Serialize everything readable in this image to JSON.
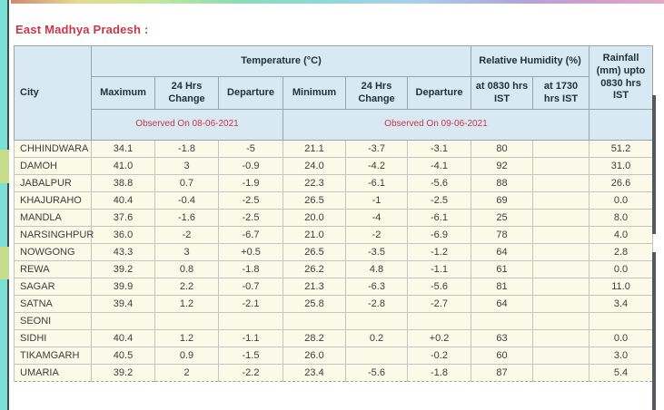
{
  "title": "East Madhya Pradesh :",
  "colors": {
    "accent_red": "#cb3647",
    "header_bg": "#d8e9f3",
    "cell_bg": "#fbfae9",
    "left_strip_teal": "#7de0d6"
  },
  "table": {
    "columns": {
      "city": "City",
      "temperature_group": "Temperature (°C)",
      "humidity_group": "Relative Humidity (%)",
      "rainfall": "Rainfall (mm) upto 0830 hrs IST",
      "sub": [
        "Maximum",
        "24 Hrs Change",
        "Departure",
        "Minimum",
        "24 Hrs Change",
        "Departure",
        "at 0830 hrs IST",
        "at 1730 hrs IST"
      ],
      "observed_max": "Observed On 08-06-2021",
      "observed_min": "Observed On 09-06-2021"
    },
    "rows": [
      {
        "city": "CHHINDWARA",
        "values": [
          "34.1",
          "-1.8",
          "-5",
          "21.1",
          "-3.7",
          "-3.1",
          "80",
          "",
          "51.2"
        ]
      },
      {
        "city": "DAMOH",
        "values": [
          "41.0",
          "3",
          "-0.9",
          "24.0",
          "-4.2",
          "-4.1",
          "92",
          "",
          "31.0"
        ]
      },
      {
        "city": "JABALPUR",
        "values": [
          "38.8",
          "0.7",
          "-1.9",
          "22.3",
          "-6.1",
          "-5.6",
          "88",
          "",
          "26.6"
        ]
      },
      {
        "city": "KHAJURAHO",
        "values": [
          "40.4",
          "-0.4",
          "-2.5",
          "26.5",
          "-1",
          "-2.5",
          "69",
          "",
          "0.0"
        ]
      },
      {
        "city": "MANDLA",
        "values": [
          "37.6",
          "-1.6",
          "-2.5",
          "20.0",
          "-4",
          "-6.1",
          "25",
          "",
          "8.0"
        ]
      },
      {
        "city": "NARSINGHPUR",
        "values": [
          "36.0",
          "-2",
          "-6.7",
          "21.0",
          "-2",
          "-6.9",
          "78",
          "",
          "4.0"
        ]
      },
      {
        "city": "NOWGONG",
        "values": [
          "43.3",
          "3",
          "+0.5",
          "26.5",
          "-3.5",
          "-1.2",
          "64",
          "",
          "2.8"
        ]
      },
      {
        "city": "REWA",
        "values": [
          "39.2",
          "0.8",
          "-1.8",
          "26.2",
          "4.8",
          "-1.1",
          "61",
          "",
          "0.0"
        ]
      },
      {
        "city": "SAGAR",
        "values": [
          "39.9",
          "2.2",
          "-0.7",
          "21.3",
          "-6.3",
          "-5.6",
          "81",
          "",
          "11.0"
        ]
      },
      {
        "city": "SATNA",
        "values": [
          "39.4",
          "1.2",
          "-2.1",
          "25.8",
          "-2.8",
          "-2.7",
          "64",
          "",
          "3.4"
        ]
      },
      {
        "city": "SEONI",
        "values": [
          "",
          "",
          "",
          "",
          "",
          "",
          "",
          "",
          ""
        ]
      },
      {
        "city": "SIDHI",
        "values": [
          "40.4",
          "1.2",
          "-1.1",
          "28.2",
          "0.2",
          "+0.2",
          "63",
          "",
          "0.0"
        ]
      },
      {
        "city": "TIKAMGARH",
        "values": [
          "40.5",
          "0.9",
          "-1.5",
          "26.0",
          "",
          "-0.2",
          "60",
          "",
          "3.0"
        ]
      },
      {
        "city": "UMARIA",
        "values": [
          "39.2",
          "2",
          "-2.2",
          "23.4",
          "-5.6",
          "-1.8",
          "87",
          "",
          "5.4"
        ]
      }
    ]
  }
}
